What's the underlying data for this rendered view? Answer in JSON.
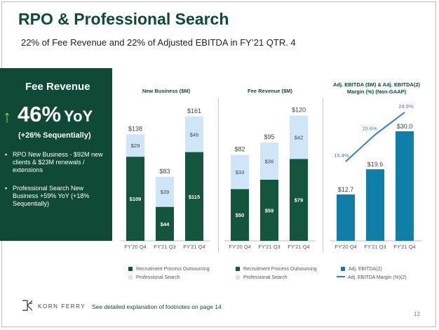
{
  "title": "RPO & Professional Search",
  "subtitle": "22% of Fee Revenue and 22% of Adjusted EBITDA in FY’21 QTR. 4",
  "panel": {
    "heading": "Fee Revenue",
    "growth": "46%",
    "growth_suffix": "YoY",
    "sequential": "(+26% Sequentially)",
    "bullets": [
      "RPO New Business - $92M new clients & $23M renewals / extensions",
      "Professional Search New Business +59% YoY (+18% Sequentially)"
    ]
  },
  "colors": {
    "brand_green": "#0f4a36",
    "rpo_bar": "#14553d",
    "search_bar": "#cfe6f8",
    "ebitda_bar": "#0f7ea8",
    "margin_line": "#2e7fd0",
    "arrow": "#8fd13f"
  },
  "chart_data": [
    {
      "type": "bar",
      "stacked": true,
      "title": "New Business ($M)",
      "categories": [
        "FY'20 Q4",
        "FY'21 Q3",
        "FY'21 Q4"
      ],
      "series": [
        {
          "name": "Recruitment Process Outsourcing",
          "values": [
            109,
            44,
            115
          ],
          "labels": [
            "$109",
            "$44",
            "$115"
          ]
        },
        {
          "name": "Professional Search",
          "values": [
            29,
            39,
            46
          ],
          "labels": [
            "$29",
            "$39",
            "$46"
          ]
        }
      ],
      "totals": [
        "$138",
        "$83",
        "$161"
      ],
      "ylim": [
        0,
        161
      ]
    },
    {
      "type": "bar",
      "stacked": true,
      "title": "Fee Revenue ($M)",
      "categories": [
        "FY'20 Q4",
        "FY'21 Q3",
        "FY'21 Q4"
      ],
      "series": [
        {
          "name": "Recruitment Process Outsourcing",
          "values": [
            50,
            59,
            79
          ],
          "labels": [
            "$50",
            "$59",
            "$79"
          ]
        },
        {
          "name": "Professional Search",
          "values": [
            33,
            36,
            42
          ],
          "labels": [
            "$33",
            "$36",
            "$42"
          ]
        }
      ],
      "totals": [
        "$82",
        "$95",
        "$120"
      ],
      "ylim": [
        0,
        120
      ]
    },
    {
      "type": "bar",
      "title": "Adj. EBITDA  ($M) & Adj. EBITDA(2) Margin (%) (Non-GAAP)",
      "categories": [
        "FY'20 Q4",
        "FY'21 Q3",
        "FY'21 Q4"
      ],
      "series": [
        {
          "name": "Adj. EBITDA(2)",
          "type": "bar",
          "values": [
            12.7,
            19.6,
            30.0
          ],
          "labels": [
            "$12.7",
            "$19.6",
            "$30.0"
          ]
        },
        {
          "name": "Adj. EBITDA Margin (%)(2)",
          "type": "line",
          "values": [
            15.4,
            20.6,
            24.9
          ],
          "labels": [
            "15.4%",
            "20.6%",
            "24.9%"
          ]
        }
      ],
      "ylim": [
        0,
        30.0
      ]
    }
  ],
  "footer": {
    "logo_text": "KORN FERRY",
    "footnote": "See detailed explanation of footnotes on page 14",
    "page_number": "12"
  }
}
